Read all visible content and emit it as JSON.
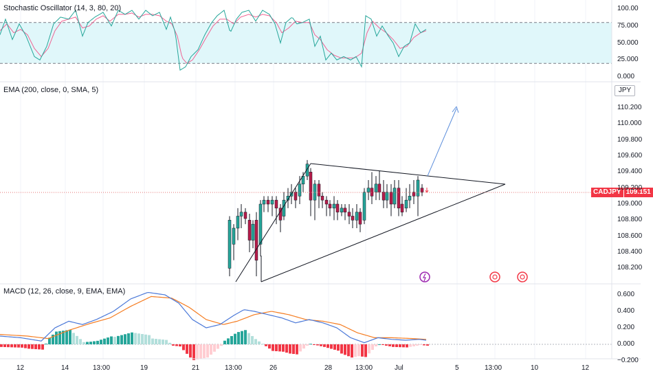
{
  "panes": {
    "stoch": {
      "label": "Stochastic Oscillator (14, 3, 80, 20)",
      "ticks": [
        "100.00",
        "75.000",
        "50.000",
        "25.000",
        "0.000"
      ],
      "tick_values": [
        100,
        75,
        50,
        25,
        0
      ],
      "upper_band": 80,
      "lower_band": 20
    },
    "price": {
      "label": "EMA (200, close, 0, SMA, 5)",
      "currency": "JPY",
      "ticks": [
        "110.200",
        "110.000",
        "109.800",
        "109.600",
        "109.400",
        "109.200",
        "109.000",
        "108.800",
        "108.600",
        "108.400",
        "108.200"
      ],
      "tick_values": [
        110.2,
        110.0,
        109.8,
        109.6,
        109.4,
        109.2,
        109.0,
        108.8,
        108.6,
        108.4,
        108.2
      ],
      "symbol": "CADJPY",
      "last_price": "109.151"
    },
    "macd": {
      "label": "MACD (12, 26, close, 9, EMA, EMA)",
      "ticks": [
        "0.600",
        "0.400",
        "0.200",
        "0.000",
        "−0.200"
      ],
      "tick_values": [
        0.6,
        0.4,
        0.2,
        0.0,
        -0.2
      ]
    }
  },
  "time_axis": [
    "12",
    "14",
    "13:00",
    "19",
    "21",
    "13:00",
    "26",
    "28",
    "13:00",
    "Jul",
    "5",
    "13:00",
    "10",
    "12"
  ],
  "colors": {
    "up": "#26a69a",
    "down": "#b71c4a",
    "stoch_k": "#26a69a",
    "stoch_d": "#f06292",
    "stoch_band": "#e0f7fa",
    "macd_line": "#4a78d8",
    "signal_line": "#f57c20",
    "hist_up_strong": "#26a69a",
    "hist_up_weak": "#b2dfdb",
    "hist_down_strong": "#f23645",
    "hist_down_weak": "#ffcdd2",
    "price_line": "#e57373",
    "projection": "#5b8ddb",
    "badge": "#f23645"
  },
  "events": [
    "lightning-icon",
    "calendar-event-icon",
    "calendar-event-icon"
  ]
}
